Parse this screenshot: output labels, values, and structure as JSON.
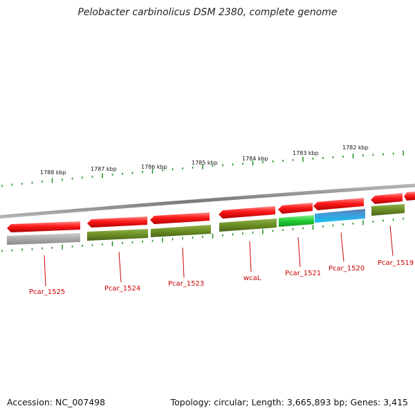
{
  "title": "Pelobacter carbinolicus DSM 2380, complete genome",
  "footer": {
    "accession": "Accession: NC_007498",
    "summary": "Topology: circular; Length: 3,665,893 bp; Genes: 3,415"
  },
  "scale": {
    "labels": [
      "1788 kbp",
      "1787 kbp",
      "1786 kbp",
      "1785 kbp",
      "1784 kbp",
      "1783 kbp",
      "1782 kbp"
    ]
  },
  "gene_labels": [
    "Pcar_1525",
    "Pcar_1524",
    "Pcar_1523",
    "wcaL",
    "Pcar_1521",
    "Pcar_1520",
    "Pcar_1519"
  ],
  "colors": {
    "backbone": "#8a8a8a",
    "gene_arrow": "#ee1111",
    "cds_olive": "#6b8e23",
    "cds_green": "#22cc33",
    "cds_blue": "#1aaee6",
    "cds_gray": "#a8a8a8",
    "tick": "#1a8a1a",
    "label": "#cc0000"
  }
}
